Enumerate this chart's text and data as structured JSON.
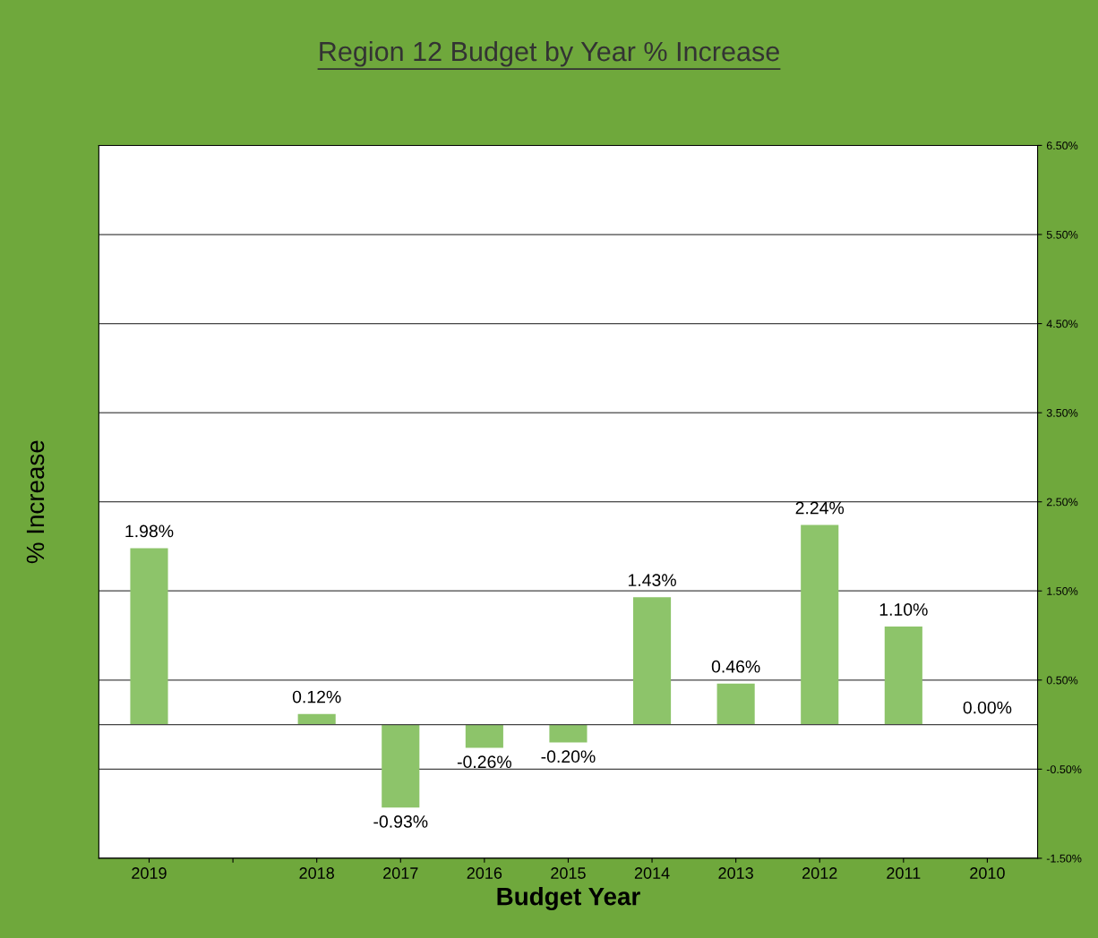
{
  "chart_data": {
    "type": "bar",
    "title": "Region 12 Budget by Year % Increase",
    "xlabel": "Budget Year",
    "ylabel": "% Increase",
    "categories": [
      "2019",
      null,
      "2018",
      "2017",
      "2016",
      "2015",
      "2014",
      "2013",
      "2012",
      "2011",
      "2010"
    ],
    "values": [
      1.98,
      null,
      0.12,
      -0.93,
      -0.26,
      -0.2,
      1.43,
      0.46,
      2.24,
      1.1,
      0.0
    ],
    "value_labels": [
      "1.98%",
      null,
      "0.12%",
      "-0.93%",
      "-0.26%",
      "-0.20%",
      "1.43%",
      "0.46%",
      "2.24%",
      "1.10%",
      "0.00%"
    ],
    "color": "#8dc46a",
    "ylim": [
      -1.5,
      6.5
    ],
    "yticks": [
      {
        "value": -1.5,
        "label": "-1.50%"
      },
      {
        "value": -0.5,
        "label": "-0.50%"
      },
      {
        "value": 0.5,
        "label": "0.50%"
      },
      {
        "value": 1.5,
        "label": "1.50%"
      },
      {
        "value": 2.5,
        "label": "2.50%"
      },
      {
        "value": 3.5,
        "label": "3.50%"
      },
      {
        "value": 4.5,
        "label": "4.50%"
      },
      {
        "value": 5.5,
        "label": "5.50%"
      },
      {
        "value": 6.5,
        "label": "6.50%"
      }
    ],
    "grid": "y",
    "legend": false
  }
}
